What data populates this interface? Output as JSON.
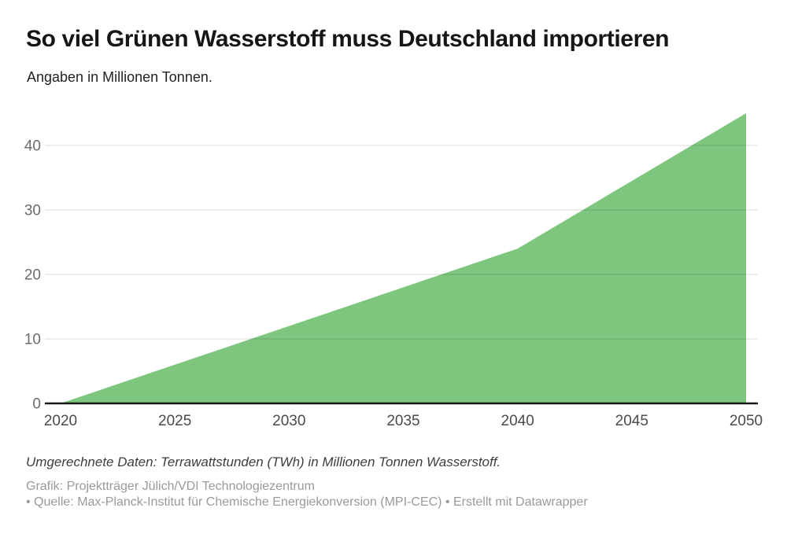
{
  "title": "So viel Grünen Wasserstoff muss Deutschland importieren",
  "subtitle": "Angaben in Millionen Tonnen.",
  "notes": {
    "conversion_note": "Umgerechnete Daten: Terrawattstunden (TWh) in Millionen Tonnen Wasserstoff.",
    "credit_line1": "Grafik: Projektträger Jülich/VDI Technologiezentrum",
    "credit_line2": "• Quelle: Max-Planck-Institut für Chemische Energiekonversion (MPI-CEC) • Erstellt mit Datawrapper"
  },
  "chart_data": {
    "type": "area",
    "title": "So viel Grünen Wasserstoff muss Deutschland importieren",
    "subtitle": "Angaben in Millionen Tonnen.",
    "x": [
      2020,
      2025,
      2030,
      2035,
      2040,
      2045,
      2050
    ],
    "values": [
      0,
      6,
      12,
      18,
      24,
      34.5,
      45
    ],
    "x_ticks": [
      2020,
      2025,
      2030,
      2035,
      2040,
      2045,
      2050
    ],
    "y_ticks": [
      0,
      10,
      20,
      30,
      40
    ],
    "xlim": [
      2020,
      2050
    ],
    "ylim": [
      0,
      45
    ],
    "xlabel": "",
    "ylabel": "",
    "grid": true,
    "legend": false,
    "colors": {
      "area_fill": "#7ec57d",
      "baseline": "#1a1a1a",
      "gridline_rgba": "rgba(0,0,0,0.15)",
      "y_tick_text": "#6b6b6b",
      "x_tick_text": "#4a4a4a"
    }
  }
}
